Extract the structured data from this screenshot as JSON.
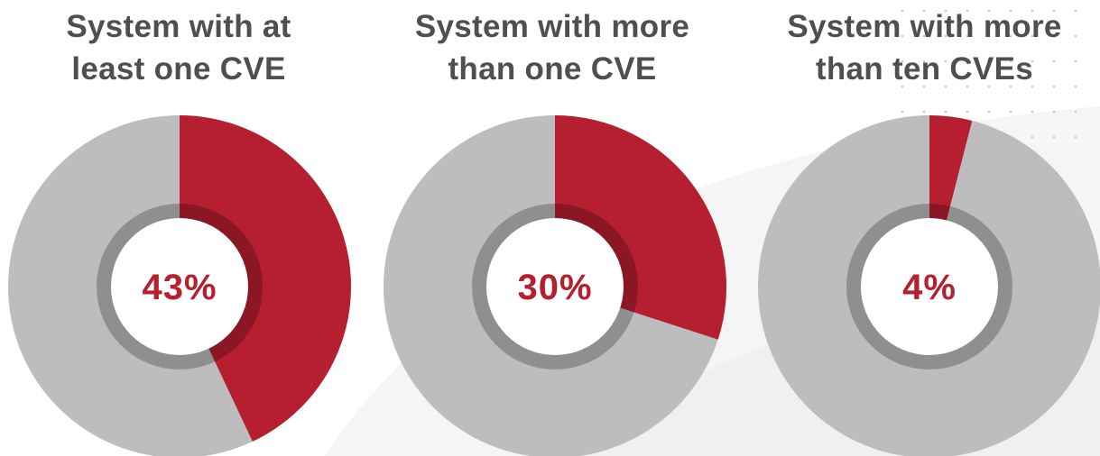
{
  "colors": {
    "accent_red": "#b61f2f",
    "ring_gray": "#bdbdbf",
    "inner_band_gray": "#8e8f91",
    "title_gray": "#4f4f4f",
    "center_fill": "#ffffff"
  },
  "chart_data": [
    {
      "type": "pie",
      "style": "donut",
      "title_lines": [
        "System with at",
        "least one CVE"
      ],
      "value_percent": 43,
      "center_label": "43%",
      "slices": [
        {
          "label": "",
          "value": 43,
          "color": "#b61f2f"
        },
        {
          "label": "",
          "value": 57,
          "color": "#bdbdbf"
        }
      ]
    },
    {
      "type": "pie",
      "style": "donut",
      "title_lines": [
        "System with more",
        "than one CVE"
      ],
      "value_percent": 30,
      "center_label": "30%",
      "slices": [
        {
          "label": "",
          "value": 30,
          "color": "#b61f2f"
        },
        {
          "label": "",
          "value": 70,
          "color": "#bdbdbf"
        }
      ]
    },
    {
      "type": "pie",
      "style": "donut",
      "title_lines": [
        "System with more",
        "than ten CVEs"
      ],
      "value_percent": 4,
      "center_label": "4%",
      "slices": [
        {
          "label": "",
          "value": 4,
          "color": "#b61f2f"
        },
        {
          "label": "",
          "value": 96,
          "color": "#bdbdbf"
        }
      ]
    }
  ]
}
